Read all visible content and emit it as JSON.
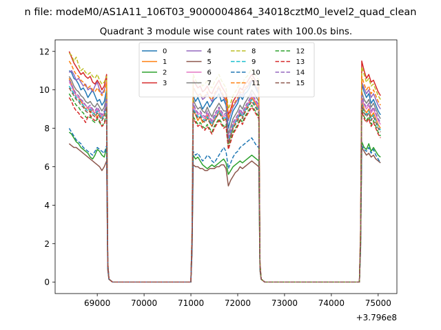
{
  "suptitle": "n file: modeM0/AS1A11_106T03_9000004864_34018cztM0_level2_quad_clean",
  "chart_data": {
    "type": "line",
    "title": "Quadrant 3 module wise count rates with 100.0s bins.",
    "xlabel": "",
    "ylabel": "",
    "xlim": [
      68100,
      75400
    ],
    "ylim": [
      -0.6,
      12.6
    ],
    "x_offset_label": "+3.796e8",
    "x_ticks": [
      69000,
      70000,
      71000,
      72000,
      73000,
      74000,
      75000
    ],
    "x_tick_labels": [
      "69000",
      "70000",
      "71000",
      "72000",
      "73000",
      "74000",
      "75000"
    ],
    "y_ticks": [
      0,
      2,
      4,
      6,
      8,
      10,
      12
    ],
    "y_tick_labels": [
      "0",
      "2",
      "4",
      "6",
      "8",
      "10",
      "12"
    ],
    "grid": false,
    "legend_position": "top-center",
    "legend_columns": 4,
    "x_segments": [
      {
        "start": 68400,
        "end": 69200,
        "step": 50
      },
      {
        "start": 71050,
        "end": 72450,
        "step": 50
      },
      {
        "start": 74650,
        "end": 75050,
        "step": 50
      }
    ],
    "series": [
      {
        "name": "0",
        "color": "#1f77b4",
        "dashed": false,
        "seg1": [
          11.0,
          10.9,
          10.6,
          10.5,
          10.3,
          10.0,
          10.1,
          9.9,
          9.6,
          9.8,
          10.0,
          9.7,
          9.4,
          9.5,
          9.2,
          9.4,
          10.0
        ],
        "seg2": [
          9.7,
          9.4,
          9.6,
          9.3,
          9.0,
          9.2,
          9.4,
          9.1,
          9.3,
          9.5,
          9.6,
          9.8,
          9.4,
          9.5,
          9.2,
          8.0,
          8.5,
          8.9,
          9.1,
          9.3,
          9.7,
          9.5,
          9.8,
          9.9,
          10.1,
          10.5,
          10.3,
          10.0,
          9.8
        ],
        "seg3": [
          10.3,
          9.9,
          9.6,
          9.8,
          9.3,
          9.5,
          9.2,
          8.9,
          8.7
        ]
      },
      {
        "name": "1",
        "color": "#ff7f0e",
        "dashed": false,
        "seg1": [
          10.6,
          10.3,
          10.0,
          9.7,
          9.6,
          9.4,
          9.2,
          9.0,
          9.1,
          8.8,
          9.0,
          8.7,
          8.6,
          8.8,
          8.5,
          8.7,
          9.3
        ],
        "seg2": [
          9.0,
          8.7,
          8.4,
          8.6,
          8.3,
          8.4,
          8.7,
          8.3,
          8.1,
          8.4,
          8.6,
          8.9,
          8.7,
          8.4,
          8.5,
          7.2,
          7.6,
          8.0,
          8.3,
          8.5,
          8.8,
          8.6,
          8.9,
          9.1,
          9.3,
          9.6,
          9.4,
          9.2,
          9.0
        ],
        "seg3": [
          9.4,
          9.0,
          8.8,
          9.0,
          8.6,
          8.8,
          8.5,
          8.2,
          8.0
        ]
      },
      {
        "name": "2",
        "color": "#2ca02c",
        "dashed": false,
        "seg1": [
          7.8,
          7.7,
          7.5,
          7.3,
          7.2,
          7.0,
          6.9,
          6.8,
          6.7,
          6.5,
          6.4,
          6.6,
          6.9,
          6.8,
          6.6,
          6.5,
          7.0
        ],
        "seg2": [
          6.6,
          6.4,
          6.5,
          6.3,
          6.1,
          6.0,
          5.9,
          6.0,
          6.1,
          6.0,
          6.1,
          6.2,
          6.3,
          6.4,
          6.2,
          5.6,
          5.8,
          6.0,
          6.1,
          6.2,
          6.3,
          6.2,
          6.3,
          6.4,
          6.5,
          6.6,
          6.5,
          6.4,
          6.3
        ],
        "seg3": [
          7.3,
          7.0,
          6.9,
          7.2,
          6.8,
          7.0,
          6.8,
          6.6,
          6.5
        ]
      },
      {
        "name": "3",
        "color": "#d62728",
        "dashed": false,
        "seg1": [
          12.0,
          11.7,
          11.4,
          11.2,
          11.0,
          10.8,
          10.9,
          10.7,
          10.6,
          10.7,
          10.4,
          10.3,
          10.5,
          10.3,
          10.0,
          10.2,
          10.8
        ],
        "seg2": [
          10.5,
          10.3,
          10.1,
          10.2,
          9.9,
          10.0,
          10.2,
          9.9,
          9.8,
          10.1,
          10.3,
          10.5,
          10.2,
          10.0,
          9.8,
          8.7,
          9.0,
          9.4,
          9.6,
          9.8,
          10.1,
          10.0,
          10.3,
          10.4,
          10.6,
          10.8,
          10.6,
          10.4,
          10.2
        ],
        "seg3": [
          11.5,
          11.0,
          10.6,
          10.8,
          10.4,
          10.5,
          10.2,
          9.9,
          9.7
        ]
      },
      {
        "name": "4",
        "color": "#9467bd",
        "dashed": false,
        "seg1": [
          10.9,
          11.0,
          10.8,
          10.5,
          10.6,
          10.4,
          10.2,
          10.3,
          10.0,
          10.1,
          9.9,
          10.2,
          10.4,
          10.0,
          9.8,
          10.0,
          10.4
        ],
        "seg2": [
          10.1,
          9.9,
          9.7,
          9.8,
          9.5,
          9.6,
          9.8,
          9.6,
          9.4,
          9.7,
          9.9,
          10.1,
          9.8,
          9.6,
          9.4,
          8.4,
          8.8,
          9.1,
          9.3,
          9.5,
          9.8,
          9.7,
          10.0,
          10.1,
          10.3,
          10.5,
          10.3,
          10.1,
          9.9
        ],
        "seg3": [
          10.4,
          10.1,
          9.8,
          10.0,
          9.6,
          9.8,
          9.5,
          9.2,
          9.0
        ]
      },
      {
        "name": "5",
        "color": "#8c564b",
        "dashed": false,
        "seg1": [
          7.2,
          7.1,
          7.0,
          7.0,
          6.9,
          6.8,
          6.7,
          6.6,
          6.5,
          6.4,
          6.3,
          6.2,
          6.1,
          6.0,
          5.8,
          6.0,
          6.3
        ],
        "seg2": [
          6.1,
          6.0,
          6.0,
          5.9,
          5.9,
          5.8,
          5.8,
          5.9,
          5.9,
          5.9,
          6.0,
          6.0,
          6.1,
          6.1,
          5.9,
          5.0,
          5.3,
          5.5,
          5.7,
          5.8,
          6.0,
          5.9,
          6.0,
          6.1,
          6.2,
          6.3,
          6.2,
          6.1,
          6.0
        ],
        "seg3": [
          7.0,
          6.8,
          6.6,
          6.7,
          6.5,
          6.6,
          6.4,
          6.3,
          6.2
        ]
      },
      {
        "name": "6",
        "color": "#e377c2",
        "dashed": false,
        "seg1": [
          10.4,
          10.2,
          9.9,
          9.7,
          9.6,
          9.5,
          9.3,
          9.2,
          9.0,
          9.1,
          8.9,
          8.8,
          9.0,
          8.8,
          8.6,
          8.8,
          9.4
        ],
        "seg2": [
          9.2,
          8.9,
          8.7,
          8.8,
          8.6,
          8.5,
          8.8,
          8.5,
          8.3,
          8.6,
          8.8,
          9.0,
          8.8,
          8.6,
          8.7,
          7.4,
          7.8,
          8.2,
          8.4,
          8.6,
          8.9,
          8.7,
          9.0,
          9.2,
          9.4,
          9.7,
          9.5,
          9.3,
          9.1
        ],
        "seg3": [
          9.6,
          9.2,
          9.0,
          9.2,
          8.8,
          9.0,
          8.7,
          8.4,
          8.2
        ]
      },
      {
        "name": "7",
        "color": "#7f7f7f",
        "dashed": false,
        "seg1": [
          10.7,
          10.5,
          10.2,
          10.0,
          9.9,
          9.7,
          9.6,
          9.4,
          9.3,
          9.4,
          9.2,
          9.1,
          9.3,
          9.1,
          8.9,
          9.1,
          9.7
        ],
        "seg2": [
          9.5,
          9.2,
          9.0,
          9.1,
          8.9,
          8.8,
          9.1,
          8.8,
          8.6,
          8.9,
          9.1,
          9.3,
          9.1,
          8.9,
          8.9,
          7.7,
          8.1,
          8.5,
          8.7,
          8.9,
          9.2,
          9.0,
          9.3,
          9.5,
          9.7,
          10.0,
          9.8,
          9.6,
          9.4
        ],
        "seg3": [
          9.9,
          9.5,
          9.3,
          9.5,
          9.1,
          9.3,
          9.0,
          8.7,
          8.5
        ]
      },
      {
        "name": "8",
        "color": "#bcbd22",
        "dashed": true,
        "seg1": [
          11.9,
          11.8,
          11.5,
          11.7,
          11.3,
          11.0,
          11.1,
          10.9,
          10.8,
          10.9,
          10.7,
          10.6,
          10.8,
          10.5,
          10.3,
          10.4,
          10.7
        ],
        "seg2": [
          10.8,
          10.5,
          10.3,
          10.4,
          10.2,
          10.3,
          10.5,
          10.2,
          10.1,
          10.4,
          10.6,
          10.8,
          10.5,
          10.3,
          10.1,
          9.0,
          9.3,
          9.7,
          9.9,
          10.1,
          10.4,
          10.3,
          10.6,
          10.7,
          10.9,
          11.1,
          10.9,
          10.7,
          10.5
        ],
        "seg3": [
          11.2,
          10.8,
          10.4,
          10.6,
          10.2,
          10.3,
          10.0,
          9.7,
          9.5
        ]
      },
      {
        "name": "9",
        "color": "#17becf",
        "dashed": true,
        "seg1": [
          10.2,
          10.0,
          9.8,
          9.6,
          9.5,
          9.3,
          9.2,
          9.0,
          8.9,
          9.0,
          8.8,
          8.7,
          8.9,
          8.7,
          8.5,
          8.7,
          9.2
        ],
        "seg2": [
          9.0,
          8.8,
          8.6,
          8.7,
          8.5,
          8.4,
          8.6,
          8.4,
          8.2,
          8.5,
          8.7,
          8.9,
          8.7,
          8.5,
          8.6,
          7.3,
          7.7,
          8.1,
          8.3,
          8.5,
          8.8,
          8.6,
          8.9,
          9.1,
          9.3,
          9.5,
          9.3,
          9.1,
          8.9
        ],
        "seg3": [
          9.3,
          8.9,
          8.7,
          8.9,
          8.5,
          8.7,
          8.4,
          8.1,
          7.9
        ]
      },
      {
        "name": "10",
        "color": "#1f77b4",
        "dashed": true,
        "seg1": [
          8.0,
          7.8,
          7.6,
          7.4,
          7.3,
          7.2,
          7.0,
          6.9,
          6.8,
          6.7,
          6.6,
          6.8,
          7.0,
          6.9,
          6.8,
          6.7,
          7.1
        ],
        "seg2": [
          6.8,
          6.6,
          6.7,
          6.5,
          6.3,
          6.4,
          6.6,
          6.5,
          6.3,
          6.2,
          6.4,
          6.6,
          6.8,
          7.0,
          6.8,
          5.9,
          6.2,
          6.5,
          6.7,
          6.8,
          7.0,
          7.1,
          7.2,
          7.3,
          7.4,
          7.5,
          7.3,
          7.1,
          7.0
        ],
        "seg3": [
          7.1,
          6.9,
          6.8,
          7.0,
          6.7,
          6.9,
          6.6,
          6.4,
          6.2
        ]
      },
      {
        "name": "11",
        "color": "#ff7f0e",
        "dashed": true,
        "seg1": [
          11.5,
          11.3,
          11.0,
          10.8,
          10.7,
          10.5,
          10.4,
          10.2,
          10.1,
          10.2,
          10.0,
          9.9,
          10.1,
          9.9,
          9.7,
          9.9,
          10.4
        ],
        "seg2": [
          10.2,
          9.9,
          9.7,
          9.8,
          9.6,
          9.7,
          9.9,
          9.6,
          9.5,
          9.8,
          10.0,
          10.2,
          9.9,
          9.7,
          9.5,
          8.5,
          8.9,
          9.2,
          9.4,
          9.6,
          9.9,
          9.8,
          10.1,
          10.2,
          10.4,
          10.6,
          10.4,
          10.2,
          10.0
        ],
        "seg3": [
          10.7,
          10.3,
          10.0,
          10.2,
          9.8,
          10.0,
          9.7,
          9.4,
          9.2
        ]
      },
      {
        "name": "12",
        "color": "#2ca02c",
        "dashed": true,
        "seg1": [
          9.8,
          9.6,
          9.4,
          9.2,
          9.1,
          8.9,
          8.8,
          8.6,
          8.5,
          8.6,
          8.4,
          8.3,
          8.5,
          8.3,
          8.1,
          8.3,
          8.8
        ],
        "seg2": [
          8.6,
          8.4,
          8.2,
          8.3,
          8.1,
          8.0,
          8.2,
          8.0,
          7.8,
          8.1,
          8.3,
          8.5,
          8.3,
          8.1,
          8.2,
          7.0,
          7.4,
          7.8,
          8.0,
          8.2,
          8.5,
          8.3,
          8.6,
          8.8,
          9.0,
          9.2,
          9.0,
          8.8,
          8.6
        ],
        "seg3": [
          9.0,
          8.6,
          8.4,
          8.6,
          8.2,
          8.4,
          8.1,
          7.8,
          7.6
        ]
      },
      {
        "name": "13",
        "color": "#d62728",
        "dashed": true,
        "seg1": [
          9.6,
          9.4,
          9.1,
          8.9,
          8.8,
          8.6,
          8.5,
          8.3,
          8.6,
          8.7,
          8.5,
          8.4,
          8.6,
          8.4,
          8.1,
          8.2,
          8.6
        ],
        "seg2": [
          8.5,
          8.3,
          8.1,
          8.2,
          8.0,
          7.9,
          8.1,
          7.9,
          7.7,
          8.0,
          8.2,
          8.4,
          8.2,
          8.0,
          8.1,
          6.9,
          7.3,
          7.7,
          7.9,
          8.1,
          8.4,
          8.2,
          8.5,
          8.7,
          8.9,
          9.1,
          8.9,
          8.7,
          8.5
        ],
        "seg3": [
          8.9,
          8.5,
          8.3,
          8.5,
          8.1,
          8.3,
          8.0,
          7.7,
          7.5
        ]
      },
      {
        "name": "14",
        "color": "#9467bd",
        "dashed": true,
        "seg1": [
          10.5,
          10.3,
          10.0,
          9.8,
          9.7,
          9.5,
          9.4,
          9.2,
          9.1,
          9.2,
          9.0,
          8.9,
          9.1,
          8.9,
          8.7,
          8.9,
          9.5
        ],
        "seg2": [
          9.3,
          9.0,
          8.8,
          8.9,
          8.7,
          8.6,
          8.9,
          8.6,
          8.4,
          8.7,
          8.9,
          9.1,
          8.9,
          8.7,
          8.8,
          7.5,
          7.9,
          8.3,
          8.5,
          8.7,
          9.0,
          8.8,
          9.1,
          9.3,
          9.5,
          9.8,
          9.6,
          9.4,
          9.2
        ],
        "seg3": [
          9.7,
          9.3,
          9.1,
          9.3,
          8.9,
          9.1,
          8.8,
          8.5,
          8.3
        ]
      },
      {
        "name": "15",
        "color": "#8c564b",
        "dashed": true,
        "seg1": [
          10.1,
          9.9,
          9.7,
          9.5,
          9.4,
          9.2,
          9.1,
          8.9,
          8.8,
          8.9,
          8.7,
          8.6,
          8.8,
          8.6,
          8.4,
          8.6,
          9.1
        ],
        "seg2": [
          8.9,
          8.7,
          8.5,
          8.6,
          8.4,
          8.3,
          8.5,
          8.3,
          8.1,
          8.4,
          8.6,
          8.8,
          8.6,
          8.4,
          8.5,
          7.2,
          7.6,
          8.0,
          8.2,
          8.4,
          8.7,
          8.5,
          8.8,
          9.0,
          9.2,
          9.4,
          9.2,
          9.0,
          8.8
        ],
        "seg3": [
          9.2,
          8.8,
          8.6,
          8.8,
          8.4,
          8.6,
          8.3,
          8.0,
          7.8
        ]
      }
    ]
  }
}
